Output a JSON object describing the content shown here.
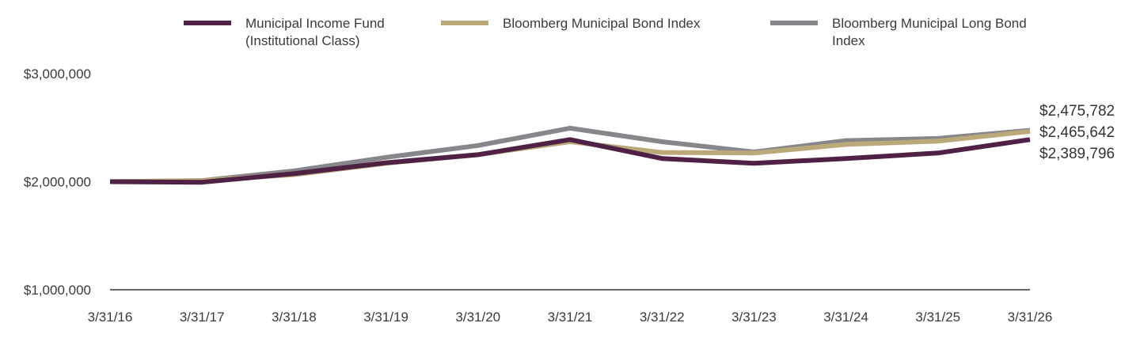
{
  "chart_data": {
    "type": "line",
    "title": "",
    "xlabel": "",
    "ylabel": "",
    "categories": [
      "3/31/16",
      "3/31/17",
      "3/31/18",
      "3/31/19",
      "3/31/20",
      "3/31/21",
      "3/31/22",
      "3/31/23",
      "3/31/24",
      "3/31/25",
      "3/31/26"
    ],
    "ylim": [
      1000000,
      3000000
    ],
    "yticks": [
      {
        "value": 3000000,
        "label": "$3,000,000"
      },
      {
        "value": 2000000,
        "label": "$2,000,000"
      },
      {
        "value": 1000000,
        "label": "$1,000,000"
      }
    ],
    "grid": false,
    "legend_position": "top",
    "series": [
      {
        "name": "Bloomberg Municipal Long Bond Index",
        "legend_lines": [
          "Bloomberg Municipal Long Bond",
          "Index"
        ],
        "color": "#87868b",
        "values": [
          2000000,
          2010000,
          2100000,
          2225000,
          2335000,
          2495000,
          2370000,
          2275000,
          2380000,
          2400000,
          2475782
        ],
        "end_label": "$2,475,782"
      },
      {
        "name": "Bloomberg Municipal Bond Index",
        "legend_lines": [
          "Bloomberg Municipal Bond Index"
        ],
        "color": "#bca97a",
        "values": [
          2000000,
          2010000,
          2065000,
          2170000,
          2250000,
          2370000,
          2270000,
          2265000,
          2345000,
          2375000,
          2465642
        ],
        "end_label": "$2,465,642"
      },
      {
        "name": "Municipal Income Fund (Institutional Class)",
        "legend_lines": [
          "Municipal Income Fund",
          "(Institutional Class)"
        ],
        "color": "#4f2245",
        "values": [
          2000000,
          1995000,
          2075000,
          2175000,
          2250000,
          2390000,
          2215000,
          2170000,
          2215000,
          2265000,
          2389796
        ],
        "end_label": "$2,389,796"
      }
    ]
  }
}
